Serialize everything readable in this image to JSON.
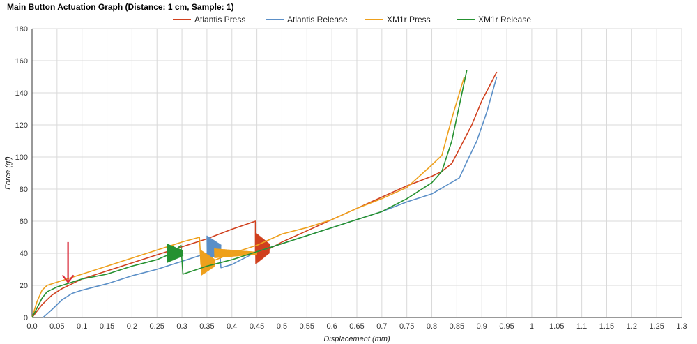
{
  "chart_data": {
    "type": "line",
    "title": "Main Button Actuation Graph (Distance: 1 cm, Sample: 1)",
    "xlabel": "Displacement (mm)",
    "ylabel": "Force (gf)",
    "xlim": [
      0,
      1.3
    ],
    "ylim": [
      0,
      180
    ],
    "x_ticks": [
      "0.0",
      "0.05",
      "0.1",
      "0.15",
      "0.2",
      "0.25",
      "0.3",
      "0.35",
      "0.4",
      "0.45",
      "0.5",
      "0.55",
      "0.6",
      "0.65",
      "0.7",
      "0.75",
      "0.8",
      "0.85",
      "0.9",
      "0.95",
      "1",
      "1.05",
      "1.1",
      "1.15",
      "1.2",
      "1.25",
      "1.3"
    ],
    "y_ticks": [
      "0",
      "20",
      "40",
      "60",
      "80",
      "100",
      "120",
      "140",
      "160",
      "180"
    ],
    "grid": true,
    "legend_position": "top",
    "series": [
      {
        "name": "Atlantis Press",
        "color": "#d0401e",
        "x": [
          0.0,
          0.02,
          0.04,
          0.06,
          0.08,
          0.1,
          0.15,
          0.2,
          0.25,
          0.3,
          0.35,
          0.4,
          0.447,
          0.447,
          0.47,
          0.5,
          0.55,
          0.6,
          0.65,
          0.7,
          0.75,
          0.8,
          0.82,
          0.84,
          0.86,
          0.88,
          0.9,
          0.93
        ],
        "y": [
          0,
          8,
          14,
          18,
          21,
          24,
          29,
          34,
          39,
          44,
          49,
          55,
          60,
          40,
          42,
          47,
          54,
          61,
          68,
          75,
          82,
          88,
          91,
          96,
          108,
          120,
          135,
          153
        ],
        "noise": [
          {
            "x_start": 0.447,
            "x_end": 0.475,
            "center": 43,
            "amp": 10
          }
        ]
      },
      {
        "name": "Atlantis Release",
        "color": "#5b8fc7",
        "x": [
          0.022,
          0.04,
          0.06,
          0.08,
          0.1,
          0.15,
          0.2,
          0.25,
          0.3,
          0.35,
          0.375,
          0.378,
          0.4,
          0.45,
          0.5,
          0.55,
          0.6,
          0.65,
          0.7,
          0.75,
          0.8,
          0.855,
          0.87,
          0.89,
          0.91,
          0.93
        ],
        "y": [
          0,
          5,
          11,
          15,
          17,
          21,
          26,
          30,
          35,
          40,
          44,
          31,
          33,
          41,
          46,
          51,
          56,
          61,
          66,
          72,
          77,
          87,
          97,
          110,
          128,
          150
        ],
        "noise": [
          {
            "x_start": 0.35,
            "x_end": 0.378,
            "center": 43,
            "amp": 8
          }
        ]
      },
      {
        "name": "XM1r Press",
        "color": "#eea01c",
        "x": [
          0.0,
          0.01,
          0.02,
          0.03,
          0.05,
          0.1,
          0.15,
          0.2,
          0.25,
          0.3,
          0.335,
          0.338,
          0.36,
          0.4,
          0.45,
          0.5,
          0.55,
          0.6,
          0.65,
          0.7,
          0.75,
          0.8,
          0.82,
          0.84,
          0.865
        ],
        "y": [
          0,
          10,
          17,
          20,
          22,
          27,
          32,
          37,
          42,
          47,
          50,
          33,
          35,
          40,
          45,
          52,
          56,
          61,
          68,
          74,
          81,
          95,
          101,
          124,
          150
        ],
        "noise": [
          {
            "x_start": 0.338,
            "x_end": 0.365,
            "center": 34,
            "amp": 8
          },
          {
            "x_start": 0.365,
            "x_end": 0.45,
            "center": 40,
            "amp": 3
          }
        ]
      },
      {
        "name": "XM1r Release",
        "color": "#259130",
        "x": [
          0.0,
          0.01,
          0.02,
          0.03,
          0.05,
          0.08,
          0.1,
          0.15,
          0.2,
          0.25,
          0.28,
          0.298,
          0.302,
          0.35,
          0.4,
          0.45,
          0.5,
          0.55,
          0.6,
          0.65,
          0.7,
          0.75,
          0.8,
          0.82,
          0.84,
          0.87
        ],
        "y": [
          0,
          6,
          12,
          16,
          19,
          22,
          24,
          27,
          32,
          36,
          40,
          45,
          27,
          32,
          36,
          41,
          46,
          51,
          56,
          61,
          66,
          74,
          84,
          91,
          110,
          154
        ],
        "noise": [
          {
            "x_start": 0.27,
            "x_end": 0.302,
            "center": 40,
            "amp": 6
          }
        ]
      }
    ],
    "annotation": {
      "type": "arrow",
      "color": "#d92b3a",
      "x": 0.072,
      "y_from": 47,
      "y_to": 22
    }
  }
}
